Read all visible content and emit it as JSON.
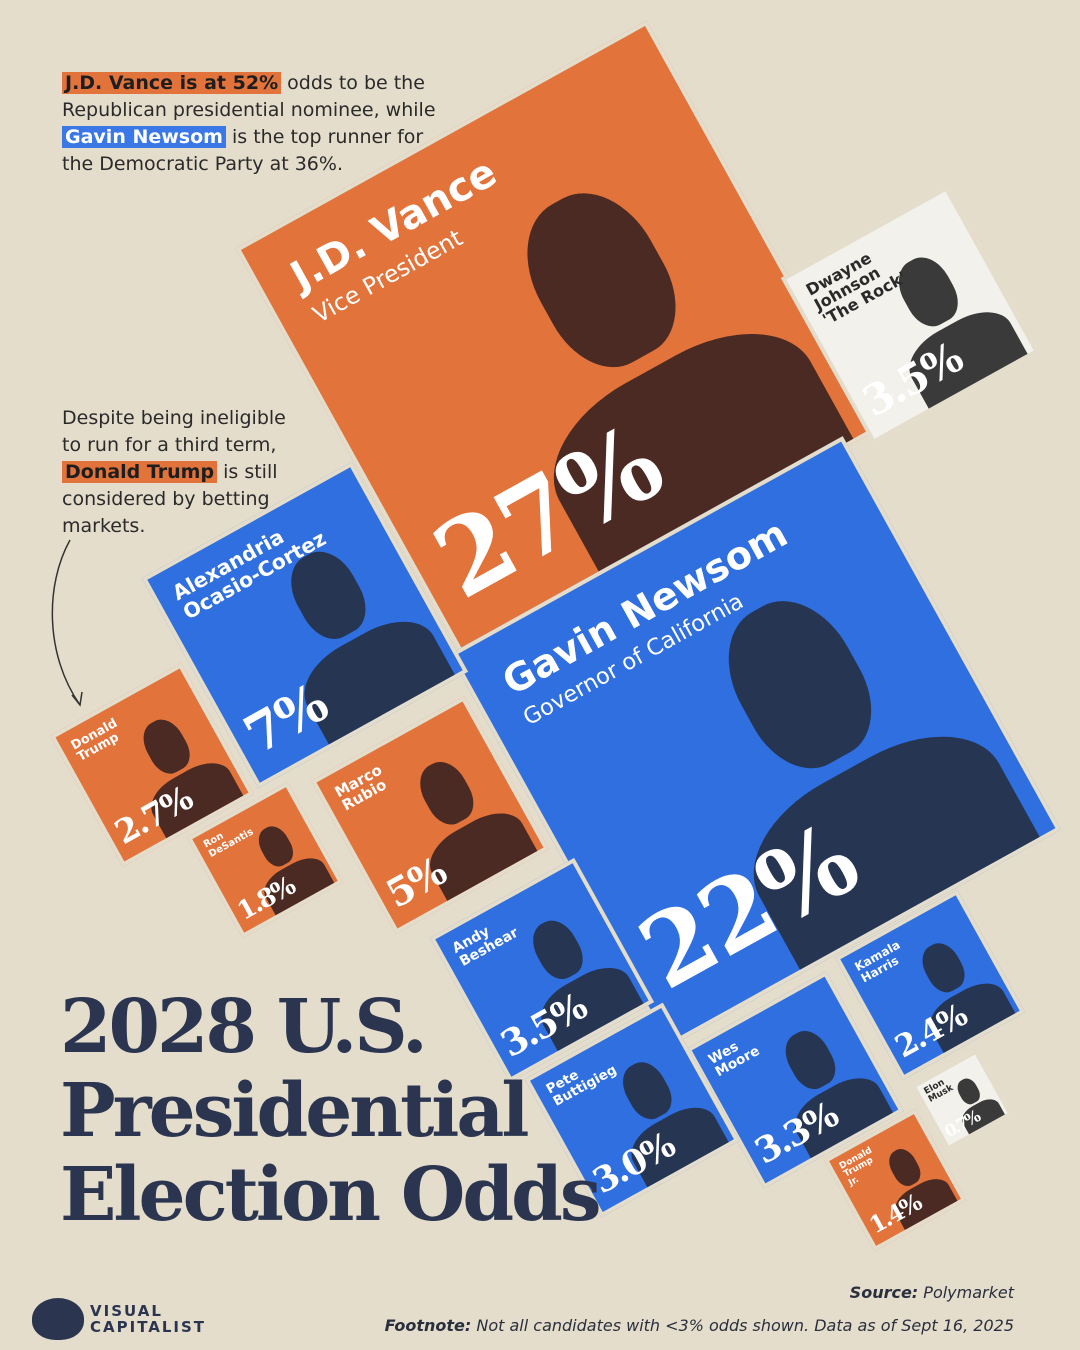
{
  "annotations": {
    "top": {
      "p1": "J.D. Vance is at 52%",
      "p2": " odds to be the Republican presidential nominee, while ",
      "p3": "Gavin Newsom",
      "p4": " is the top runner for the Democratic Party at 36%."
    },
    "trump": {
      "p1": "Despite being ineligible to run for a third term, ",
      "p2": "Donald Trump",
      "p3": " is still considered by betting markets."
    }
  },
  "chart_data": {
    "type": "treemap",
    "title": "2028 U.S.\nPresidential\nElection Odds",
    "unit": "%",
    "colors": {
      "Republican": "#e2733a",
      "Democratic": "#2f6fe0",
      "Other": "#f3f1ec"
    },
    "items": [
      {
        "name": "J.D. Vance",
        "subtitle": "Vice President",
        "value": 27,
        "label": "27%",
        "party": "Republican"
      },
      {
        "name": "Gavin Newsom",
        "subtitle": "Governor of California",
        "value": 22,
        "label": "22%",
        "party": "Democratic"
      },
      {
        "name": "Alexandria\nOcasio-Cortez",
        "value": 7,
        "label": "7%",
        "party": "Democratic"
      },
      {
        "name": "Marco\nRubio",
        "value": 5,
        "label": "5%",
        "party": "Republican"
      },
      {
        "name": "Dwayne\nJohnson\n'The Rock'",
        "value": 3.5,
        "label": "3.5%",
        "party": "Other"
      },
      {
        "name": "Andy\nBeshear",
        "value": 3.5,
        "label": "3.5%",
        "party": "Democratic"
      },
      {
        "name": "Wes\nMoore",
        "value": 3.3,
        "label": "3.3%",
        "party": "Democratic"
      },
      {
        "name": "Pete\nButtigieg",
        "value": 3.0,
        "label": "3.0%",
        "party": "Democratic"
      },
      {
        "name": "Donald\nTrump",
        "value": 2.7,
        "label": "2.7%",
        "party": "Republican"
      },
      {
        "name": "Kamala\nHarris",
        "value": 2.4,
        "label": "2.4%",
        "party": "Democratic"
      },
      {
        "name": "Ron\nDeSantis",
        "value": 1.8,
        "label": "1.8%",
        "party": "Republican"
      },
      {
        "name": "Donald\nTrump\nJr.",
        "value": 1.4,
        "label": "1.4%",
        "party": "Republican"
      },
      {
        "name": "Elon\nMusk",
        "value": 0.7,
        "label": "0.7%",
        "party": "Other"
      }
    ]
  },
  "footer": {
    "source_label": "Source:",
    "source": " Polymarket",
    "footnote_label": "Footnote:",
    "footnote": " Not all candidates with <3% odds shown. Data as of Sept 16, 2025",
    "brand": "VISUAL\nCAPITALIST"
  }
}
